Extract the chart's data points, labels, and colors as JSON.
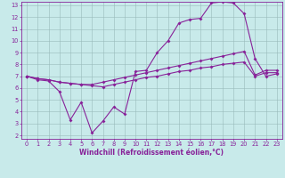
{
  "title": "",
  "xlabel": "Windchill (Refroidissement éolien,°C)",
  "ylabel": "",
  "bg_color": "#c8eaea",
  "line_color": "#882299",
  "grid_color": "#99bbbb",
  "xlim": [
    -0.5,
    23.5
  ],
  "ylim": [
    1.7,
    13.3
  ],
  "xticks": [
    0,
    1,
    2,
    3,
    4,
    5,
    6,
    7,
    8,
    9,
    10,
    11,
    12,
    13,
    14,
    15,
    16,
    17,
    18,
    19,
    20,
    21,
    22,
    23
  ],
  "yticks": [
    2,
    3,
    4,
    5,
    6,
    7,
    8,
    9,
    10,
    11,
    12,
    13
  ],
  "line1_x": [
    0,
    1,
    2,
    3,
    4,
    5,
    6,
    7,
    8,
    9,
    10,
    11,
    12,
    13,
    14,
    15,
    16,
    17,
    18,
    19,
    20,
    21,
    22,
    23
  ],
  "line1_y": [
    7.0,
    6.7,
    6.6,
    5.7,
    3.3,
    4.8,
    2.2,
    3.2,
    4.4,
    3.8,
    7.4,
    7.5,
    9.0,
    10.0,
    11.5,
    11.8,
    11.9,
    13.2,
    13.3,
    13.2,
    12.3,
    8.5,
    7.0,
    7.2
  ],
  "line2_x": [
    0,
    1,
    2,
    3,
    4,
    5,
    6,
    7,
    8,
    9,
    10,
    11,
    12,
    13,
    14,
    15,
    16,
    17,
    18,
    19,
    20,
    21,
    22,
    23
  ],
  "line2_y": [
    7.0,
    6.8,
    6.7,
    6.5,
    6.4,
    6.3,
    6.3,
    6.5,
    6.7,
    6.9,
    7.1,
    7.3,
    7.5,
    7.7,
    7.9,
    8.1,
    8.3,
    8.5,
    8.7,
    8.9,
    9.1,
    7.1,
    7.5,
    7.5
  ],
  "line3_x": [
    0,
    1,
    2,
    3,
    4,
    5,
    6,
    7,
    8,
    9,
    10,
    11,
    12,
    13,
    14,
    15,
    16,
    17,
    18,
    19,
    20,
    21,
    22,
    23
  ],
  "line3_y": [
    7.0,
    6.8,
    6.7,
    6.5,
    6.4,
    6.3,
    6.2,
    6.1,
    6.3,
    6.5,
    6.7,
    6.9,
    7.0,
    7.2,
    7.4,
    7.5,
    7.7,
    7.8,
    8.0,
    8.1,
    8.2,
    7.0,
    7.3,
    7.3
  ],
  "xlabel_fontsize": 5.5,
  "tick_fontsize": 4.8,
  "marker_size": 2.0,
  "linewidth": 0.8
}
